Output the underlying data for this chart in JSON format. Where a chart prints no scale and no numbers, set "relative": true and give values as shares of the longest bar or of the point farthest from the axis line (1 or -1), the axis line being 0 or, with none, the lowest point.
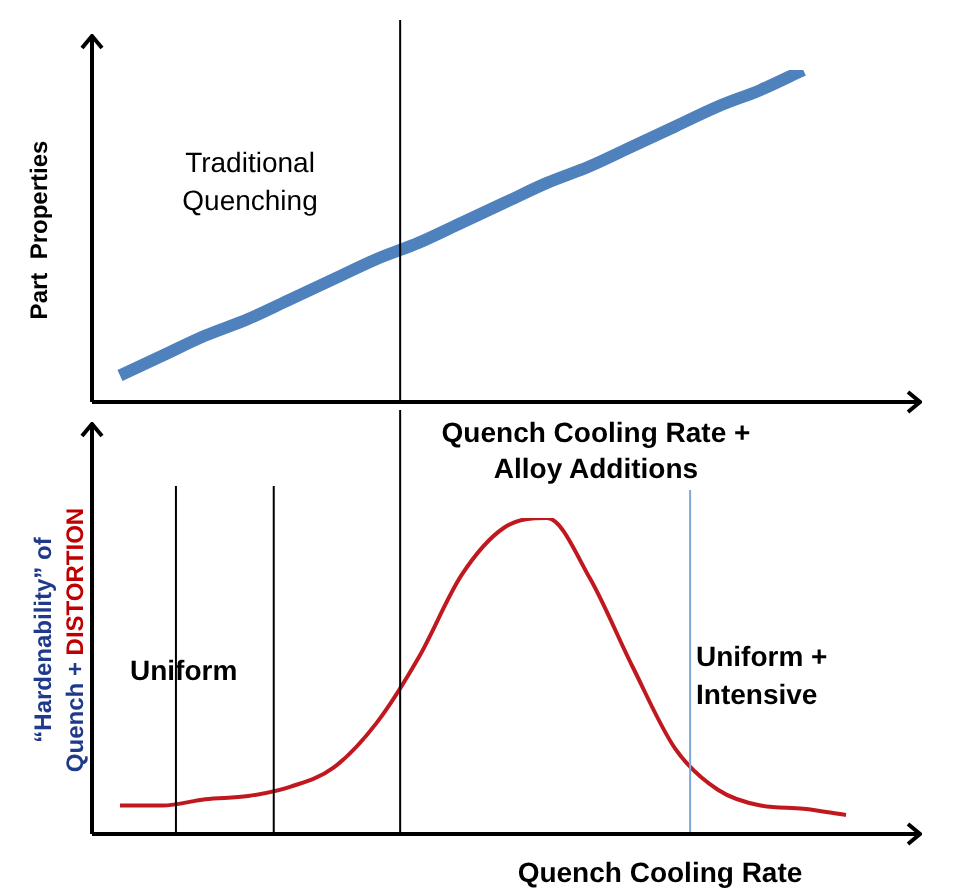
{
  "chart_data": [
    {
      "type": "line",
      "relative": true,
      "tick_labels": false,
      "legend": false,
      "marker": "none",
      "ylabel": "Part  Properties",
      "xlabel": "Quench Cooling Rate + Alloy Additions",
      "categories": [
        null,
        null,
        null,
        null,
        null,
        null,
        null,
        null,
        null,
        null,
        null,
        null,
        null,
        null,
        null,
        null,
        null,
        null
      ],
      "series": [
        {
          "color": "#4f81bd",
          "values": [
            0.08,
            0.14,
            0.2,
            0.25,
            0.31,
            0.37,
            0.43,
            0.48,
            0.54,
            0.6,
            0.66,
            0.71,
            0.77,
            0.83,
            0.89,
            0.94,
            1.0,
            null
          ]
        }
      ],
      "annotations": [
        "Traditional Quenching"
      ]
    },
    {
      "type": "line",
      "relative": true,
      "tick_labels": false,
      "legend": false,
      "marker": "none",
      "ylabel": "“Hardenability” of Quench + DISTORTION",
      "xlabel": "Quench Cooling Rate",
      "categories": [
        null,
        null,
        null,
        null,
        null,
        null,
        null,
        null,
        null,
        null,
        null,
        null,
        null,
        null,
        null,
        null,
        null,
        null
      ],
      "series": [
        {
          "color": "#c0181f",
          "values": [
            0.09,
            0.09,
            0.11,
            0.12,
            0.15,
            0.21,
            0.35,
            0.56,
            0.82,
            0.97,
            1.0,
            0.81,
            0.53,
            0.27,
            0.14,
            0.09,
            0.08,
            0.06
          ]
        }
      ],
      "annotations": [
        "Uniform",
        "Uniform + Intensive"
      ]
    }
  ]
}
